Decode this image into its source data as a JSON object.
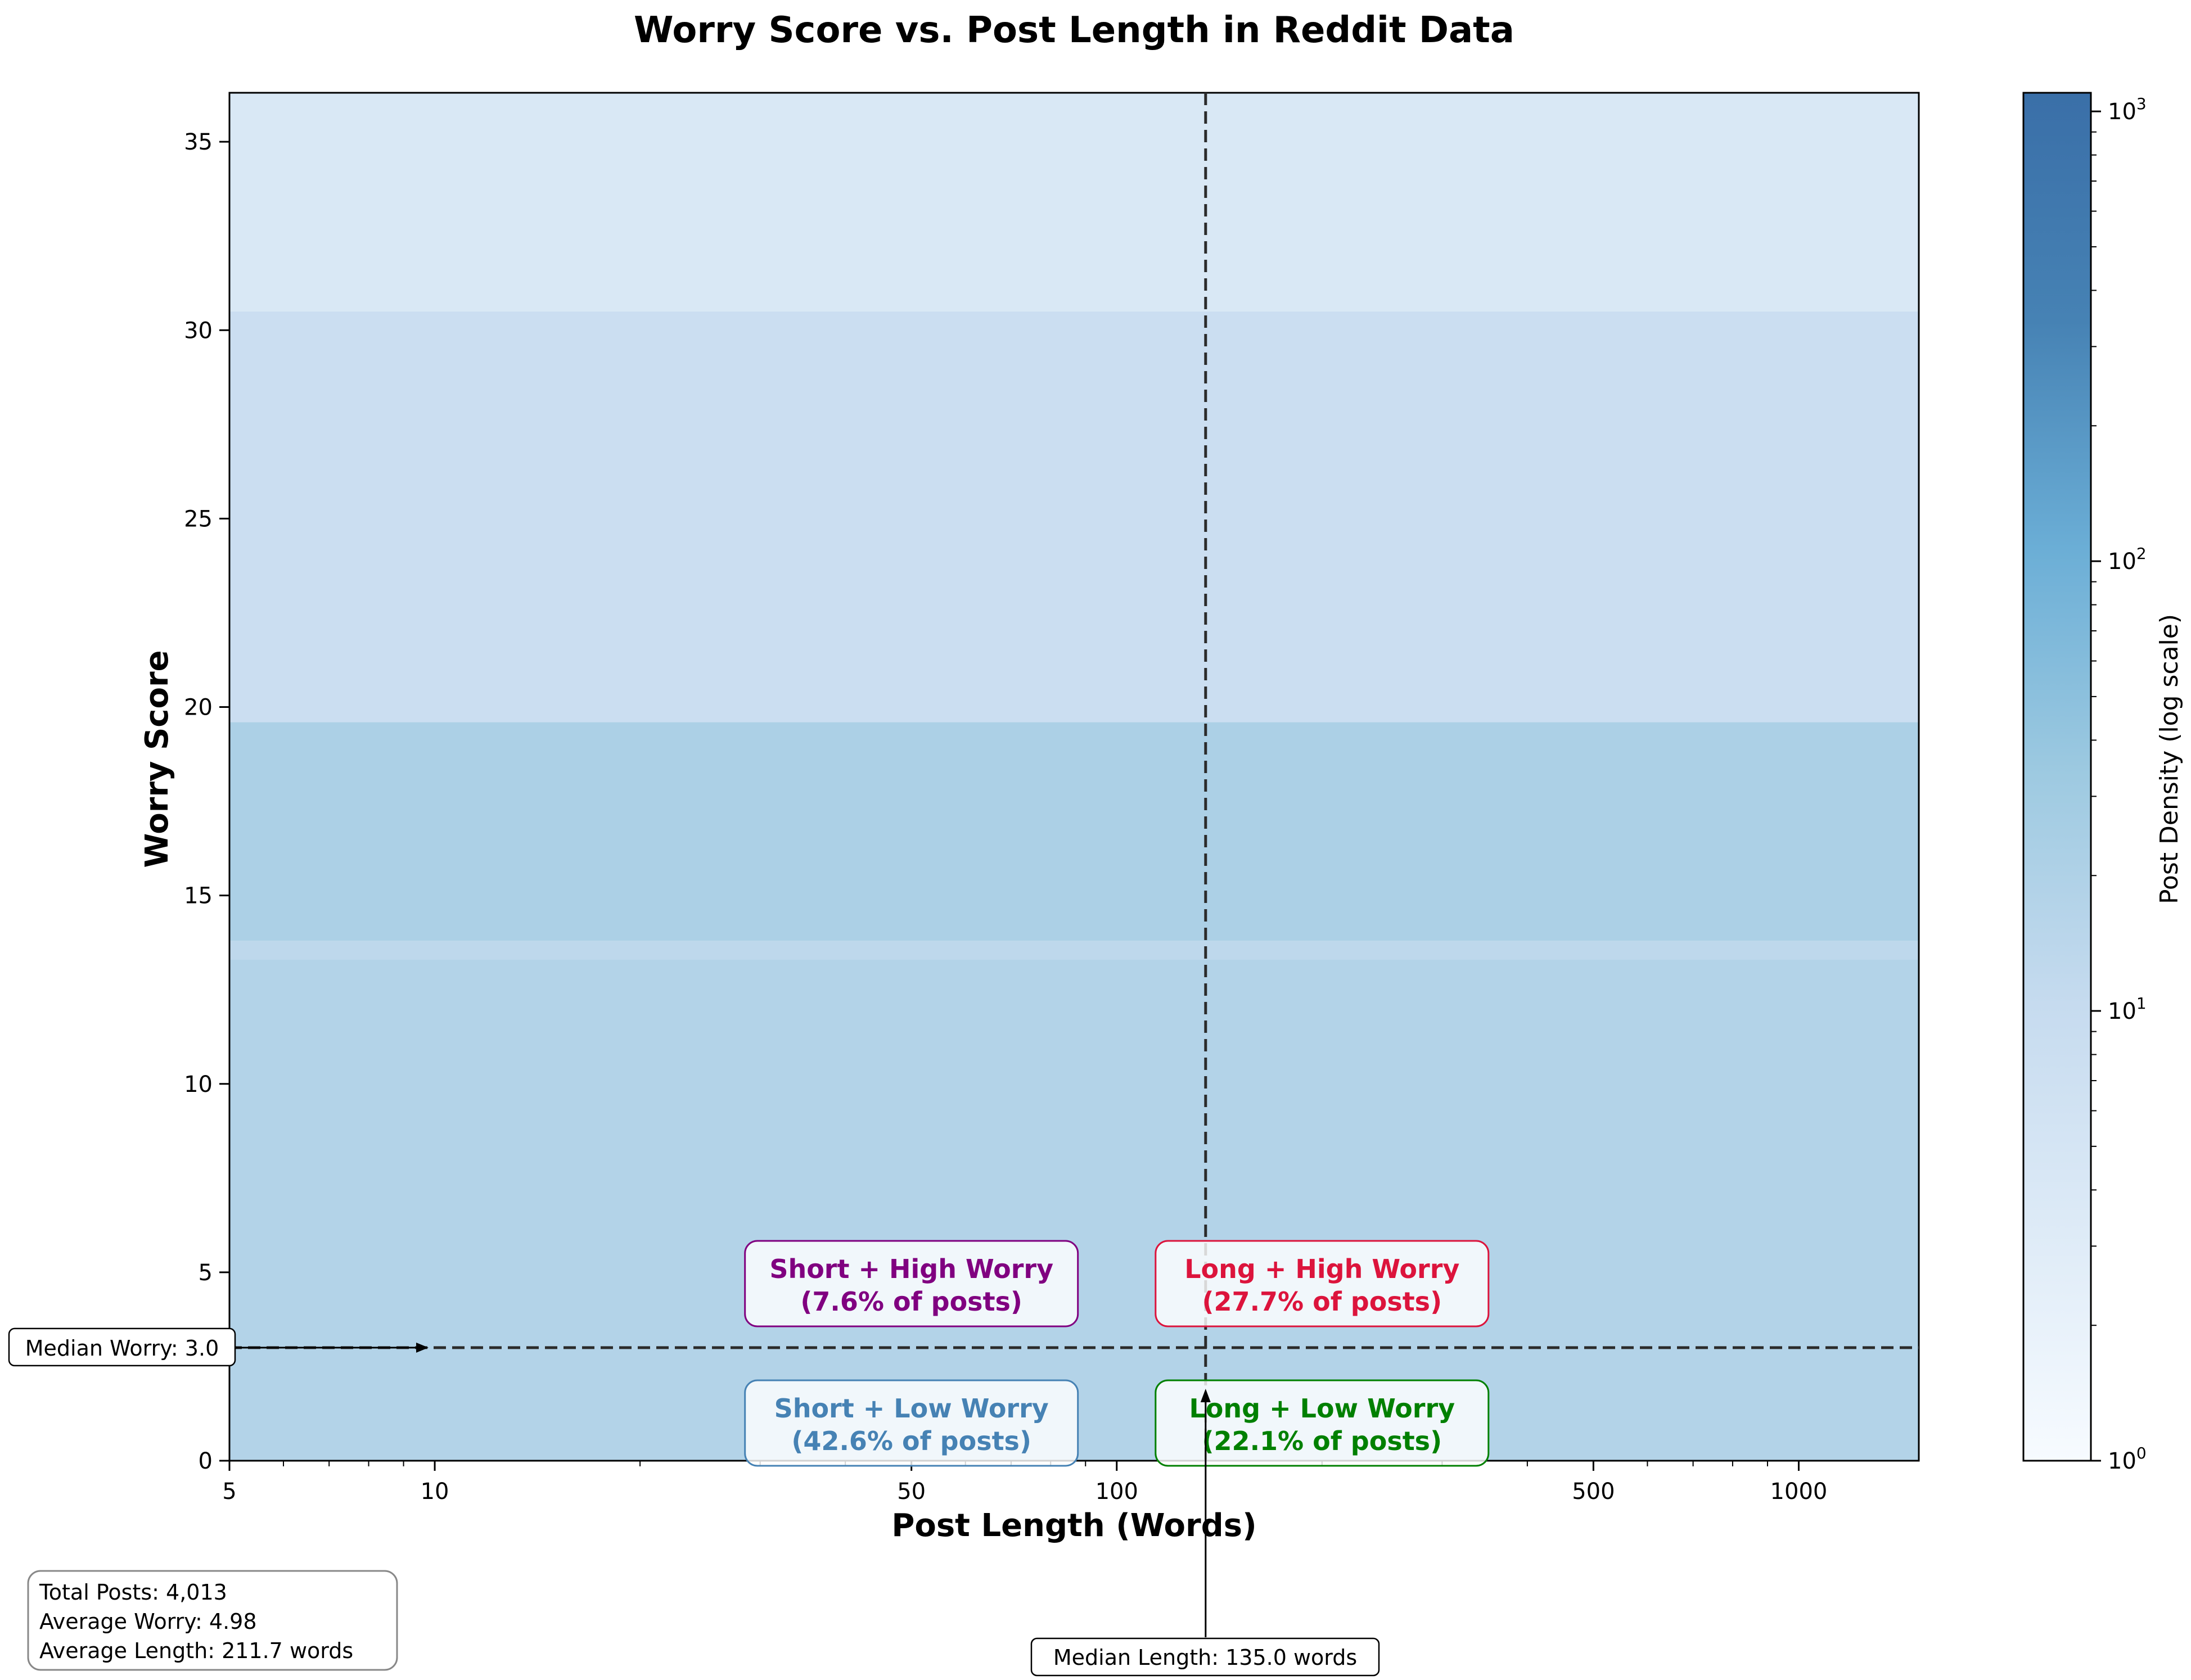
{
  "chart_data": {
    "type": "heatmap",
    "title": "Worry Score vs. Post Length in Reddit Data",
    "xlabel": "Post Length (Words)",
    "ylabel": "Worry Score",
    "x_scale": "log",
    "xlim": [
      5,
      1500
    ],
    "ylim": [
      0,
      36.3
    ],
    "x_ticks": [
      {
        "value": 5,
        "label": "5"
      },
      {
        "value": 10,
        "label": "10"
      },
      {
        "value": 50,
        "label": "50"
      },
      {
        "value": 100,
        "label": "100"
      },
      {
        "value": 500,
        "label": "500"
      },
      {
        "value": 1000,
        "label": "1000"
      }
    ],
    "y_ticks": [
      {
        "value": 0,
        "label": "0"
      },
      {
        "value": 5,
        "label": "5"
      },
      {
        "value": 10,
        "label": "10"
      },
      {
        "value": 15,
        "label": "15"
      },
      {
        "value": 20,
        "label": "20"
      },
      {
        "value": 25,
        "label": "25"
      },
      {
        "value": 30,
        "label": "30"
      },
      {
        "value": 35,
        "label": "35"
      }
    ],
    "density_bands": [
      {
        "y0": 0,
        "y1": 13.3,
        "density": 18
      },
      {
        "y0": 13.3,
        "y1": 13.8,
        "density": 13
      },
      {
        "y0": 13.8,
        "y1": 19.6,
        "density": 22
      },
      {
        "y0": 19.6,
        "y1": 30.5,
        "density": 8
      },
      {
        "y0": 30.5,
        "y1": 36.3,
        "density": 4
      }
    ],
    "colorbar": {
      "label": "Post Density (log scale)",
      "scale": "log",
      "range": [
        1,
        1100
      ],
      "ticks": [
        {
          "value": 1,
          "base": "10",
          "exp": "0"
        },
        {
          "value": 10,
          "base": "10",
          "exp": "1"
        },
        {
          "value": 100,
          "base": "10",
          "exp": "2"
        },
        {
          "value": 1000,
          "base": "10",
          "exp": "3"
        }
      ],
      "colors": [
        "#f7fbff",
        "#deebf7",
        "#c6dbef",
        "#9ecae1",
        "#6baed6",
        "#4682b4",
        "#3a6fa8"
      ]
    },
    "median_length": 135.0,
    "median_worry": 3.0,
    "median_length_label": "Median Length: 135.0 words",
    "median_worry_label": "Median Worry: 3.0",
    "quadrants": [
      {
        "line1": "Short + High Worry",
        "line2": "(7.6% of posts)",
        "color": "#800080",
        "x": 50,
        "y": 4.7
      },
      {
        "line1": "Long + High Worry",
        "line2": "(27.7% of posts)",
        "color": "#dc143c",
        "x": 200,
        "y": 4.7
      },
      {
        "line1": "Short + Low Worry",
        "line2": "(42.6% of posts)",
        "color": "#4682b4",
        "x": 50,
        "y": 1.0
      },
      {
        "line1": "Long + Low Worry",
        "line2": "(22.1% of posts)",
        "color": "#008000",
        "x": 200,
        "y": 1.0
      }
    ],
    "stats": [
      "Total Posts: 4,013",
      "Average Worry: 4.98",
      "Average Length: 211.7 words"
    ]
  }
}
